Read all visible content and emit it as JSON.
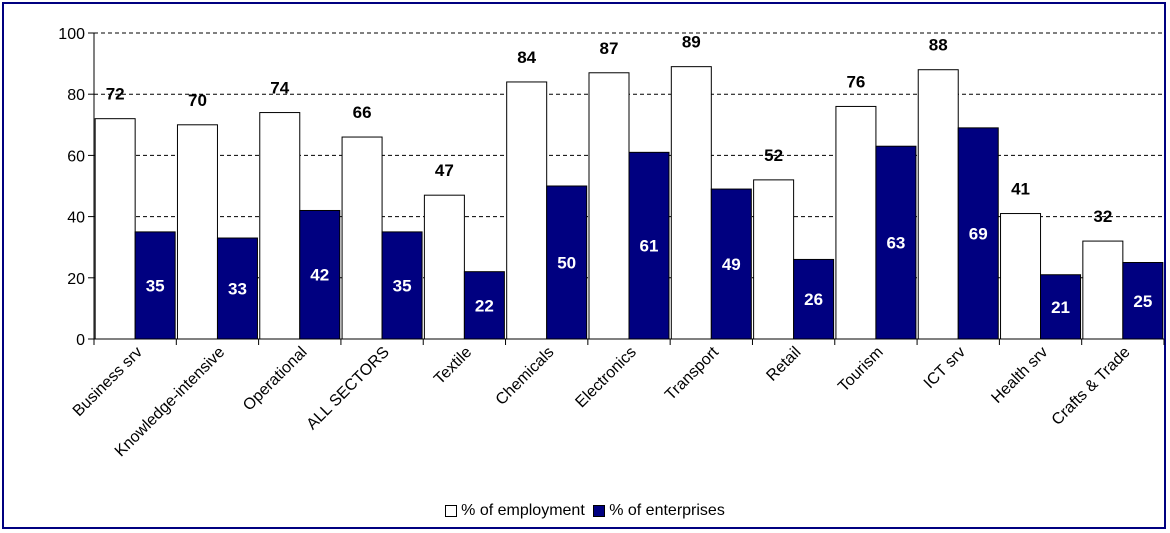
{
  "chart_data": {
    "type": "bar",
    "categories": [
      "Business srv",
      "Knowledge-intensive",
      "Operational",
      "ALL SECTORS",
      "Textile",
      "Chemicals",
      "Electronics",
      "Transport",
      "Retail",
      "Tourism",
      "ICT srv",
      "Health srv",
      "Crafts & Trade"
    ],
    "series": [
      {
        "name": "% of employment",
        "values": [
          72,
          70,
          74,
          66,
          47,
          84,
          87,
          89,
          52,
          76,
          88,
          41,
          32
        ],
        "color": "#ffffff"
      },
      {
        "name": "% of enterprises",
        "values": [
          35,
          33,
          42,
          35,
          22,
          50,
          61,
          49,
          26,
          63,
          69,
          21,
          25
        ],
        "color": "#000080"
      }
    ],
    "yticks": [
      0,
      20,
      40,
      60,
      80,
      100
    ],
    "ylim": [
      0,
      100
    ],
    "grid": "dashed horizontal",
    "legend_position": "bottom"
  }
}
